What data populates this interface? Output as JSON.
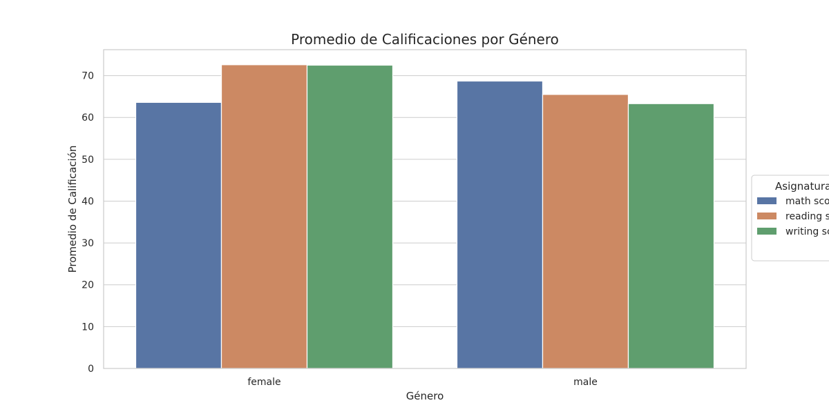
{
  "chart_data": {
    "type": "bar",
    "title": "Promedio de Calificaciones por Género",
    "xlabel": "Género",
    "ylabel": "Promedio de Calificación",
    "categories": [
      "female",
      "male"
    ],
    "series": [
      {
        "name": "math score",
        "color": "#5875a4",
        "values": [
          63.6,
          68.7
        ]
      },
      {
        "name": "reading score",
        "color": "#cc8963",
        "values": [
          72.6,
          65.5
        ]
      },
      {
        "name": "writing score",
        "color": "#5f9e6e",
        "values": [
          72.5,
          63.3
        ]
      }
    ],
    "ylim": [
      0,
      76.2
    ],
    "yticks": [
      0,
      10,
      20,
      30,
      40,
      50,
      60,
      70
    ],
    "grid": true,
    "legend": {
      "title": "Asignatura",
      "placement": "right"
    }
  }
}
